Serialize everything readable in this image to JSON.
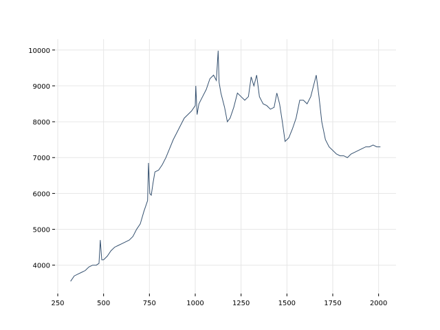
{
  "chart_data": {
    "type": "line",
    "color": "#34506f",
    "grid": true,
    "x": [
      320,
      340,
      360,
      380,
      400,
      420,
      440,
      460,
      475,
      482,
      490,
      500,
      520,
      540,
      560,
      580,
      600,
      620,
      640,
      660,
      680,
      700,
      720,
      740,
      745,
      752,
      760,
      770,
      780,
      800,
      820,
      840,
      860,
      880,
      900,
      920,
      940,
      960,
      980,
      1000,
      1003,
      1010,
      1020,
      1040,
      1060,
      1080,
      1100,
      1115,
      1125,
      1130,
      1140,
      1160,
      1175,
      1190,
      1210,
      1230,
      1250,
      1270,
      1290,
      1305,
      1320,
      1335,
      1350,
      1370,
      1390,
      1410,
      1430,
      1445,
      1460,
      1475,
      1490,
      1510,
      1530,
      1550,
      1570,
      1590,
      1610,
      1630,
      1645,
      1660,
      1675,
      1690,
      1710,
      1730,
      1750,
      1770,
      1790,
      1810,
      1830,
      1850,
      1870,
      1890,
      1910,
      1930,
      1950,
      1970,
      1990,
      2010
    ],
    "values": [
      3550,
      3700,
      3750,
      3800,
      3850,
      3950,
      4000,
      4000,
      4050,
      4700,
      4150,
      4150,
      4250,
      4400,
      4500,
      4550,
      4600,
      4650,
      4700,
      4800,
      5000,
      5150,
      5500,
      5800,
      6850,
      6000,
      5950,
      6300,
      6600,
      6650,
      6800,
      7000,
      7250,
      7500,
      7700,
      7900,
      8100,
      8200,
      8300,
      8450,
      9000,
      8200,
      8500,
      8700,
      8900,
      9200,
      9300,
      9150,
      9980,
      9100,
      8800,
      8400,
      8000,
      8100,
      8400,
      8800,
      8700,
      8600,
      8700,
      9250,
      9000,
      9300,
      8700,
      8500,
      8450,
      8350,
      8400,
      8800,
      8500,
      8000,
      7450,
      7550,
      7800,
      8100,
      8600,
      8600,
      8500,
      8700,
      9000,
      9300,
      8700,
      8000,
      7500,
      7300,
      7200,
      7100,
      7050,
      7050,
      7000,
      7100,
      7150,
      7200,
      7250,
      7300,
      7300,
      7350,
      7300,
      7300
    ],
    "xlim": [
      235,
      2095
    ],
    "ylim": [
      3208,
      10302
    ],
    "xticks": [
      250,
      500,
      750,
      1000,
      1250,
      1500,
      1750,
      2000
    ],
    "yticks": [
      4000,
      5000,
      6000,
      7000,
      8000,
      9000,
      10000
    ]
  }
}
